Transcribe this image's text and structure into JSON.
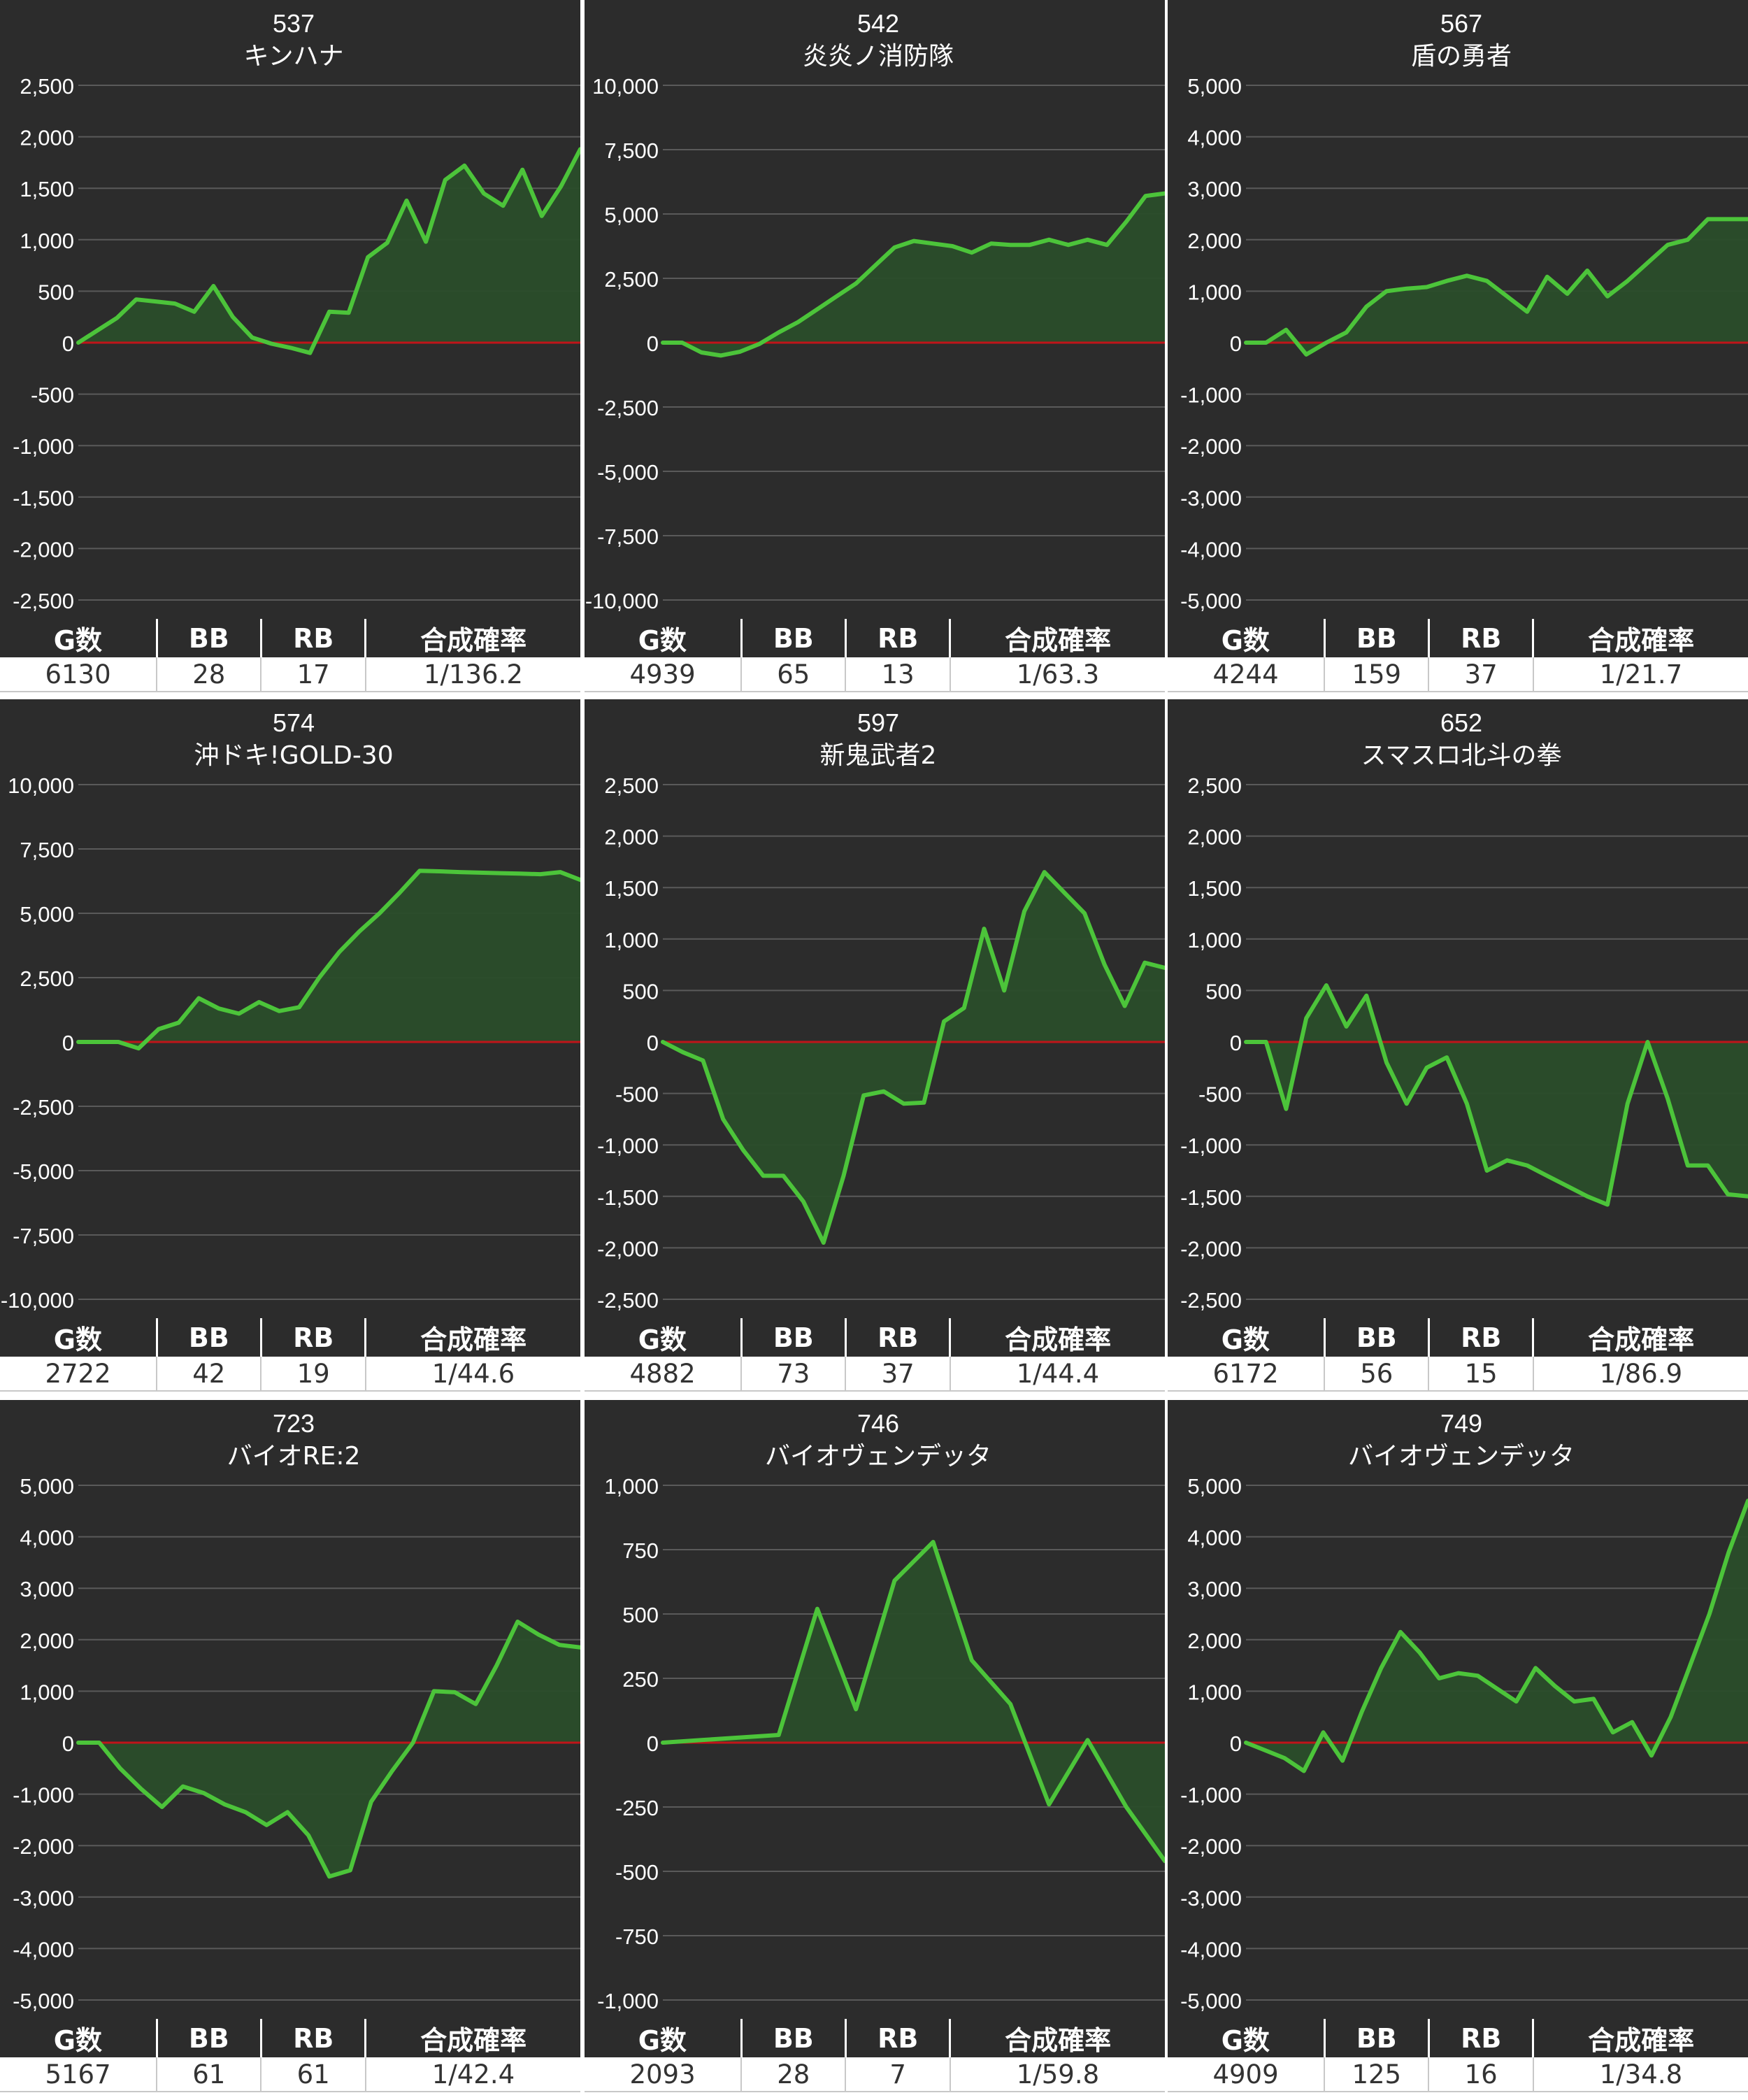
{
  "stats_headers": {
    "games": "G数",
    "bb": "BB",
    "rb": "RB",
    "prob": "合成確率"
  },
  "colors": {
    "panel_bg": "#2c2c2c",
    "line": "#4cc43a",
    "fill": "#2a4d2a",
    "zero_line": "#c0141a",
    "grid": "#5a5a5a",
    "text": "#ffffff"
  },
  "chart_data": [
    {
      "type": "area",
      "title": "537",
      "subtitle": "キンハナ",
      "yticks": [
        "2,500",
        "2,000",
        "1,500",
        "1,000",
        "500",
        "0",
        "-500",
        "-1,000",
        "-1,500",
        "-2,000",
        "-2,500"
      ],
      "ylim": [
        -2500,
        2500
      ],
      "values": [
        0,
        120,
        240,
        420,
        400,
        380,
        300,
        550,
        250,
        50,
        -10,
        -50,
        -100,
        300,
        290,
        830,
        970,
        1380,
        980,
        1580,
        1720,
        1450,
        1330,
        1680,
        1230,
        1520,
        1880
      ],
      "stats": {
        "games": "6130",
        "bb": "28",
        "rb": "17",
        "prob": "1/136.2"
      }
    },
    {
      "type": "area",
      "title": "542",
      "subtitle": "炎炎ノ消防隊",
      "yticks": [
        "10,000",
        "7,500",
        "5,000",
        "2,500",
        "0",
        "-2,500",
        "-5,000",
        "-7,500",
        "-10,000"
      ],
      "ylim": [
        -10000,
        10000
      ],
      "values": [
        0,
        0,
        -380,
        -500,
        -350,
        -50,
        400,
        800,
        1300,
        1800,
        2300,
        3000,
        3700,
        3950,
        3850,
        3750,
        3500,
        3850,
        3800,
        3800,
        4000,
        3800,
        4000,
        3800,
        4700,
        5700,
        5800
      ],
      "stats": {
        "games": "4939",
        "bb": "65",
        "rb": "13",
        "prob": "1/63.3"
      }
    },
    {
      "type": "area",
      "title": "567",
      "subtitle": "盾の勇者",
      "yticks": [
        "5,000",
        "4,000",
        "3,000",
        "2,000",
        "1,000",
        "0",
        "-1,000",
        "-2,000",
        "-3,000",
        "-4,000",
        "-5,000"
      ],
      "ylim": [
        -5000,
        5000
      ],
      "values": [
        0,
        0,
        250,
        -230,
        0,
        200,
        700,
        1000,
        1050,
        1080,
        1200,
        1300,
        1200,
        900,
        600,
        1280,
        950,
        1400,
        900,
        1200,
        1550,
        1900,
        2000,
        2400,
        2400,
        2400
      ],
      "stats": {
        "games": "4244",
        "bb": "159",
        "rb": "37",
        "prob": "1/21.7"
      }
    },
    {
      "type": "area",
      "title": "574",
      "subtitle": "沖ドキ!GOLD-30",
      "yticks": [
        "10,000",
        "7,500",
        "5,000",
        "2,500",
        "0",
        "-2,500",
        "-5,000",
        "-7,500",
        "-10,000"
      ],
      "ylim": [
        -10000,
        10000
      ],
      "values": [
        0,
        0,
        0,
        -250,
        500,
        750,
        1700,
        1300,
        1100,
        1550,
        1200,
        1350,
        2500,
        3500,
        4300,
        5000,
        5800,
        6650,
        6630,
        6600,
        6580,
        6560,
        6540,
        6520,
        6600,
        6300
      ],
      "stats": {
        "games": "2722",
        "bb": "42",
        "rb": "19",
        "prob": "1/44.6"
      }
    },
    {
      "type": "area",
      "title": "597",
      "subtitle": "新鬼武者2",
      "yticks": [
        "2,500",
        "2,000",
        "1,500",
        "1,000",
        "500",
        "0",
        "-500",
        "-1,000",
        "-1,500",
        "-2,000",
        "-2,500"
      ],
      "ylim": [
        -2500,
        2500
      ],
      "values": [
        0,
        -100,
        -180,
        -750,
        -1050,
        -1300,
        -1300,
        -1550,
        -1950,
        -1300,
        -520,
        -480,
        -600,
        -590,
        200,
        330,
        1100,
        500,
        1270,
        1650,
        1450,
        1250,
        750,
        350,
        770,
        720
      ],
      "stats": {
        "games": "4882",
        "bb": "73",
        "rb": "37",
        "prob": "1/44.4"
      }
    },
    {
      "type": "area",
      "title": "652",
      "subtitle": "スマスロ北斗の拳",
      "yticks": [
        "2,500",
        "2,000",
        "1,500",
        "1,000",
        "500",
        "0",
        "-500",
        "-1,000",
        "-1,500",
        "-2,000",
        "-2,500"
      ],
      "ylim": [
        -2500,
        2500
      ],
      "values": [
        0,
        0,
        -650,
        230,
        550,
        150,
        450,
        -200,
        -600,
        -250,
        -150,
        -600,
        -1250,
        -1150,
        -1200,
        -1300,
        -1400,
        -1500,
        -1580,
        -600,
        0,
        -550,
        -1200,
        -1200,
        -1480,
        -1500
      ],
      "stats": {
        "games": "6172",
        "bb": "56",
        "rb": "15",
        "prob": "1/86.9"
      }
    },
    {
      "type": "area",
      "title": "723",
      "subtitle": "バイオRE:2",
      "yticks": [
        "5,000",
        "4,000",
        "3,000",
        "2,000",
        "1,000",
        "0",
        "-1,000",
        "-2,000",
        "-3,000",
        "-4,000",
        "-5,000"
      ],
      "ylim": [
        -5000,
        5000
      ],
      "values": [
        0,
        0,
        -500,
        -900,
        -1250,
        -850,
        -980,
        -1200,
        -1350,
        -1600,
        -1350,
        -1800,
        -2600,
        -2480,
        -1150,
        -550,
        0,
        1000,
        980,
        750,
        1500,
        2350,
        2100,
        1900,
        1850
      ],
      "stats": {
        "games": "5167",
        "bb": "61",
        "rb": "61",
        "prob": "1/42.4"
      }
    },
    {
      "type": "area",
      "title": "746",
      "subtitle": "バイオヴェンデッタ",
      "yticks": [
        "1,000",
        "750",
        "500",
        "250",
        "0",
        "-250",
        "-500",
        "-750",
        "-1,000"
      ],
      "ylim": [
        -1000,
        1000
      ],
      "values": [
        0,
        10,
        20,
        30,
        520,
        130,
        630,
        780,
        320,
        150,
        -240,
        10,
        -250,
        -460
      ],
      "stats": {
        "games": "2093",
        "bb": "28",
        "rb": "7",
        "prob": "1/59.8"
      }
    },
    {
      "type": "area",
      "title": "749",
      "subtitle": "バイオヴェンデッタ",
      "yticks": [
        "5,000",
        "4,000",
        "3,000",
        "2,000",
        "1,000",
        "0",
        "-1,000",
        "-2,000",
        "-3,000",
        "-4,000",
        "-5,000"
      ],
      "ylim": [
        -5000,
        5000
      ],
      "values": [
        0,
        -150,
        -300,
        -550,
        200,
        -350,
        600,
        1450,
        2150,
        1750,
        1250,
        1350,
        1300,
        1050,
        800,
        1450,
        1100,
        800,
        850,
        200,
        400,
        -250,
        500,
        1500,
        2500,
        3700,
        4700
      ],
      "stats": {
        "games": "4909",
        "bb": "125",
        "rb": "16",
        "prob": "1/34.8"
      }
    }
  ]
}
